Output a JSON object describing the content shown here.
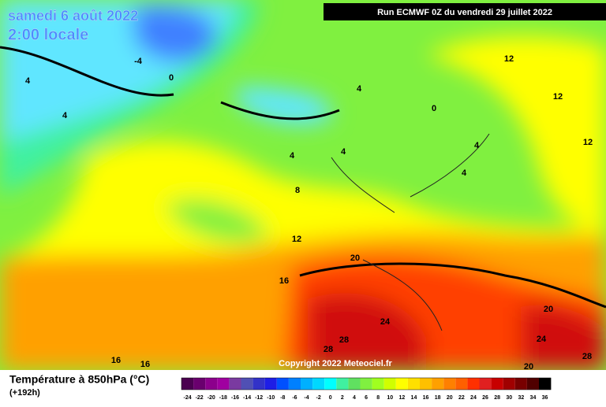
{
  "header": {
    "title": "samedi 6 août 2022",
    "subtitle": "2:00 locale",
    "run": "Run ECMWF 0Z du vendredi 29 juillet 2022",
    "copyright": "Copyright 2022 Meteociel.fr"
  },
  "map_labels": [
    -4,
    0,
    4,
    4,
    4,
    0,
    12,
    12,
    12,
    4,
    4,
    4,
    4,
    8,
    12,
    20,
    16,
    24,
    28,
    28,
    20,
    24,
    28,
    16,
    16,
    20
  ],
  "legend": {
    "title": "Température à 850hPa (°C)",
    "subtitle": "(+192h)",
    "ticks": [
      -24,
      -22,
      -20,
      -18,
      -16,
      -14,
      -12,
      -10,
      -8,
      -6,
      -4,
      -2,
      0,
      2,
      4,
      6,
      8,
      10,
      12,
      14,
      16,
      18,
      20,
      22,
      24,
      26,
      28,
      30,
      32,
      34,
      36
    ],
    "colors": [
      "#4b0050",
      "#6a006e",
      "#8c008c",
      "#a000a0",
      "#7a3aa0",
      "#5050b4",
      "#3232c8",
      "#1e1ee6",
      "#0050ff",
      "#0080ff",
      "#00b0ff",
      "#00d8ff",
      "#00ffff",
      "#40f0a0",
      "#60e060",
      "#80f040",
      "#a0ff20",
      "#d0ff00",
      "#ffff00",
      "#ffe000",
      "#ffc000",
      "#ffa000",
      "#ff8000",
      "#ff6000",
      "#ff3000",
      "#e02020",
      "#c80000",
      "#a00000",
      "#780000",
      "#500000",
      "#000000"
    ]
  }
}
